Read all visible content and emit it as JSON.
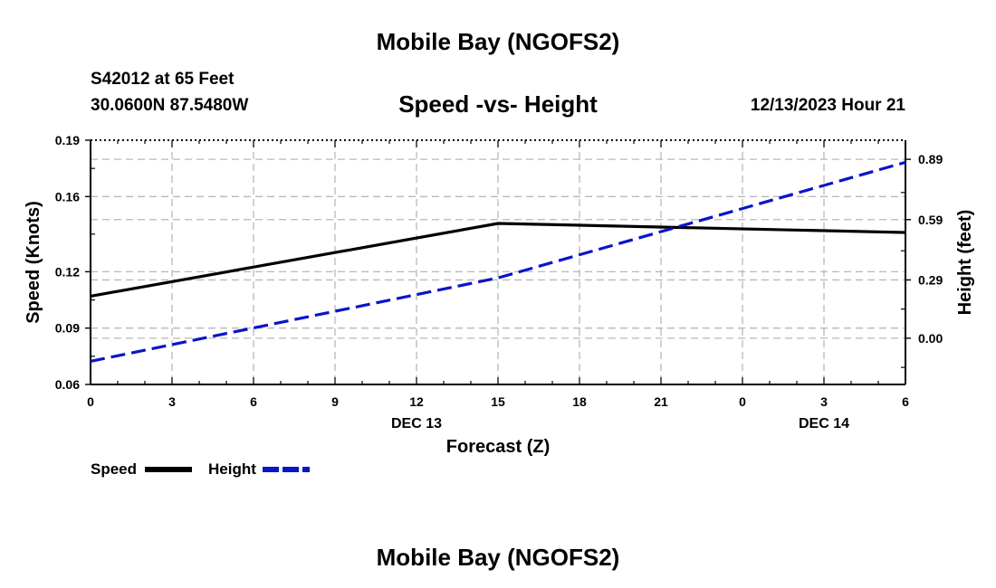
{
  "header": {
    "title": "Mobile Bay (NGOFS2)",
    "station": "S42012 at 65 Feet",
    "coords": "30.0600N  87.5480W",
    "timestamp": "12/13/2023 Hour 21"
  },
  "footer": {
    "title": "Mobile Bay (NGOFS2)"
  },
  "legend": {
    "speed": "Speed",
    "height": "Height"
  },
  "chart_data": {
    "type": "line",
    "title": "Speed -vs- Height",
    "xlabel": "Forecast (Z)",
    "ylabel": "Speed (Knots)",
    "y2label": "Height (feet)",
    "x": [
      0,
      3,
      6,
      9,
      12,
      15,
      18,
      21,
      24,
      27,
      30
    ],
    "xlim": [
      0,
      30
    ],
    "x_tick_labels": [
      "0",
      "3",
      "6",
      "9",
      "12",
      "15",
      "18",
      "21",
      "0",
      "3",
      "6"
    ],
    "date_labels": [
      {
        "x": 12,
        "label": "DEC 13"
      },
      {
        "x": 27,
        "label": "DEC 14"
      }
    ],
    "ylim": [
      0.06,
      0.19
    ],
    "yticks": [
      0.06,
      0.09,
      0.12,
      0.16,
      0.19
    ],
    "y_tick_labels": [
      "0.06",
      "0.09",
      "0.12",
      "0.16",
      "0.19"
    ],
    "y2lim": [
      -0.23,
      0.985
    ],
    "y2ticks": [
      0.0,
      0.29,
      0.59,
      0.89
    ],
    "y2_tick_labels": [
      "0.00",
      "0.29",
      "0.59",
      "0.89"
    ],
    "grid": true,
    "series": [
      {
        "name": "Speed",
        "axis": "left",
        "color": "#000000",
        "dash": "solid",
        "x": [
          0,
          15,
          30
        ],
        "values": [
          0.107,
          0.1457,
          0.1409
        ]
      },
      {
        "name": "Height",
        "axis": "right",
        "color": "#0a14c8",
        "dash": "dashed",
        "x": [
          0,
          15,
          30
        ],
        "values": [
          -0.115,
          0.3,
          0.875
        ]
      }
    ]
  }
}
